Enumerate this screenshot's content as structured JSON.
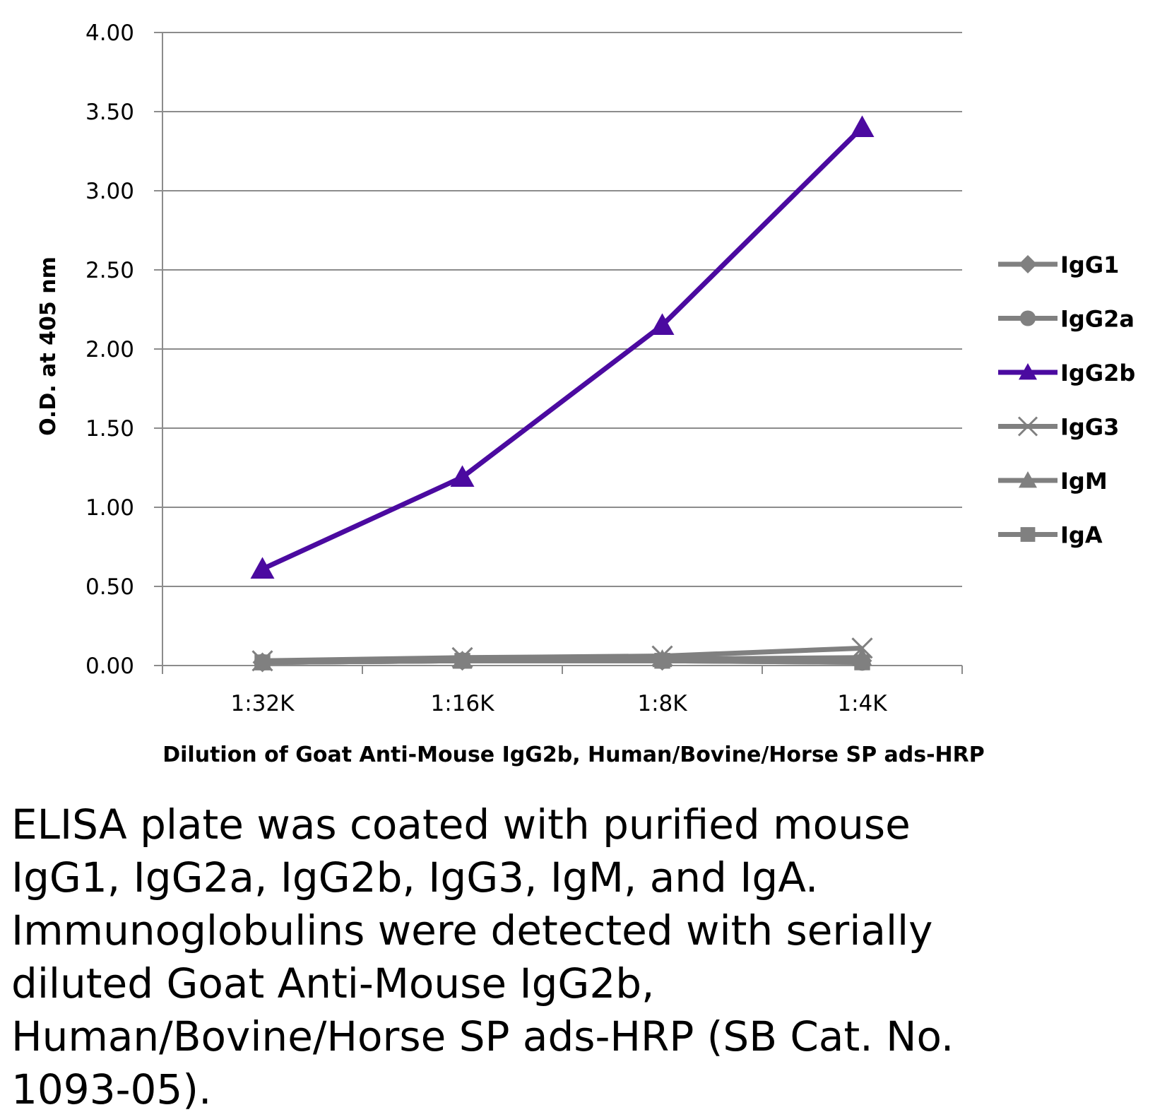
{
  "chart_data": {
    "type": "line",
    "title": "",
    "xlabel": "Dilution of Goat Anti-Mouse IgG2b, Human/Bovine/Horse SP ads-HRP",
    "ylabel": "O.D. at 405 nm",
    "categories": [
      "1:32K",
      "1:16K",
      "1:8K",
      "1:4K"
    ],
    "ylim": [
      0,
      4
    ],
    "yticks": [
      "0.00",
      "0.50",
      "1.00",
      "1.50",
      "2.00",
      "2.50",
      "3.00",
      "3.50",
      "4.00"
    ],
    "grid": "horizontal",
    "legend": "right",
    "series": [
      {
        "name": "IgG1",
        "values": [
          0.02,
          0.03,
          0.03,
          0.03
        ],
        "color": "#808080",
        "marker": "diamond"
      },
      {
        "name": "IgG2a",
        "values": [
          0.02,
          0.03,
          0.03,
          0.02
        ],
        "color": "#808080",
        "marker": "circle"
      },
      {
        "name": "IgG2b",
        "values": [
          0.61,
          1.19,
          2.15,
          3.4
        ],
        "color": "#4b0aa0",
        "marker": "triangle"
      },
      {
        "name": "IgG3",
        "values": [
          0.03,
          0.05,
          0.06,
          0.11
        ],
        "color": "#808080",
        "marker": "x"
      },
      {
        "name": "IgM",
        "values": [
          0.02,
          0.03,
          0.04,
          0.05
        ],
        "color": "#808080",
        "marker": "triangle"
      },
      {
        "name": "IgA",
        "values": [
          0.02,
          0.03,
          0.03,
          0.02
        ],
        "color": "#808080",
        "marker": "square"
      }
    ]
  },
  "caption": "ELISA plate was coated with purified mouse\nIgG1, IgG2a, IgG2b, IgG3, IgM, and IgA.\nImmunoglobulins were detected with serially\ndiluted Goat Anti-Mouse IgG2b,\nHuman/Bovine/Horse SP ads-HRP (SB Cat. No.\n1093-05)."
}
